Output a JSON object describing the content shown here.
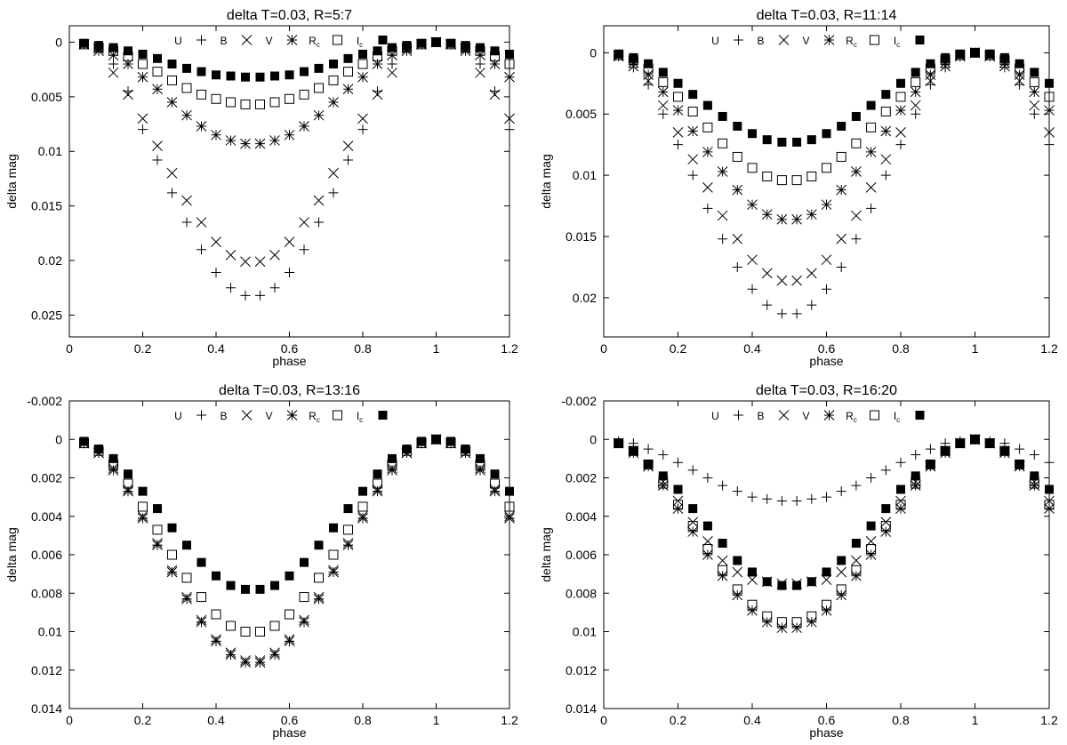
{
  "chart_data": [
    {
      "type": "scatter",
      "title": "delta T=0.03, R=5:7",
      "xlabel": "phase",
      "ylabel": "delta mag",
      "xlim": [
        0,
        1.2
      ],
      "ylim": [
        0.027,
        -0.0015
      ],
      "y_inverted": true,
      "xticks": [
        "0",
        "0.2",
        "0.4",
        "0.6",
        "0.8",
        "1",
        "1.2"
      ],
      "yticks": [
        "0",
        "0.005",
        "0.01",
        "0.015",
        "0.02",
        "0.025"
      ],
      "legend_position": "top-center",
      "x": [
        0.04,
        0.08,
        0.12,
        0.16,
        0.2,
        0.24,
        0.28,
        0.32,
        0.36,
        0.4,
        0.44,
        0.48,
        0.52,
        0.56,
        0.6,
        0.64,
        0.68,
        0.72,
        0.76,
        0.8,
        0.84,
        0.88,
        0.92,
        0.96,
        1.0,
        1.04,
        1.08,
        1.12,
        1.16,
        1.2
      ],
      "series": [
        {
          "name": "U",
          "marker": "plus",
          "values": [
            0.0002,
            0.0007,
            0.002,
            0.0045,
            0.008,
            0.0108,
            0.0138,
            0.0165,
            0.019,
            0.0211,
            0.0225,
            0.0232,
            0.0232,
            0.0225,
            0.0211,
            0.019,
            0.0165,
            0.0138,
            0.0108,
            0.008,
            0.0045,
            0.002,
            0.0007,
            0.0002,
            0.0,
            0.0002,
            0.0007,
            0.002,
            0.0045,
            0.008
          ]
        },
        {
          "name": "B",
          "marker": "cross",
          "values": [
            0.0002,
            0.0006,
            0.0028,
            0.0048,
            0.007,
            0.0095,
            0.012,
            0.0145,
            0.0165,
            0.0183,
            0.0195,
            0.0201,
            0.0201,
            0.0195,
            0.0183,
            0.0165,
            0.0145,
            0.012,
            0.0095,
            0.007,
            0.0048,
            0.0028,
            0.0006,
            0.0002,
            0.0,
            0.0002,
            0.0006,
            0.0028,
            0.0048,
            0.007
          ]
        },
        {
          "name": "V",
          "marker": "star",
          "values": [
            0.0002,
            0.0008,
            0.0012,
            0.002,
            0.0032,
            0.0043,
            0.0055,
            0.0067,
            0.0077,
            0.0085,
            0.009,
            0.0093,
            0.0093,
            0.009,
            0.0085,
            0.0077,
            0.0067,
            0.0055,
            0.0043,
            0.0032,
            0.002,
            0.0012,
            0.0008,
            0.0002,
            0.0,
            0.0002,
            0.0008,
            0.0012,
            0.002,
            0.0032
          ]
        },
        {
          "name": "R_c",
          "marker": "square-open",
          "values": [
            0.0002,
            0.0005,
            0.0008,
            0.0013,
            0.002,
            0.0027,
            0.0035,
            0.0042,
            0.0048,
            0.0052,
            0.0055,
            0.0057,
            0.0057,
            0.0055,
            0.0052,
            0.0048,
            0.0042,
            0.0035,
            0.0027,
            0.002,
            0.0013,
            0.0008,
            0.0005,
            0.0002,
            0.0,
            0.0002,
            0.0005,
            0.0008,
            0.0013,
            0.002
          ]
        },
        {
          "name": "I_c",
          "marker": "square-filled",
          "values": [
            0.0001,
            0.0003,
            0.0005,
            0.0008,
            0.0011,
            0.0015,
            0.002,
            0.0024,
            0.0027,
            0.003,
            0.0031,
            0.0032,
            0.0032,
            0.0031,
            0.003,
            0.0027,
            0.0024,
            0.002,
            0.0015,
            0.0011,
            0.0008,
            0.0005,
            0.0003,
            0.0001,
            0.0,
            0.0001,
            0.0003,
            0.0005,
            0.0008,
            0.0011
          ]
        }
      ]
    },
    {
      "type": "scatter",
      "title": "delta T=0.03, R=11:14",
      "xlabel": "phase",
      "ylabel": "delta mag",
      "xlim": [
        0,
        1.2
      ],
      "ylim": [
        0.0232,
        -0.0022
      ],
      "y_inverted": true,
      "xticks": [
        "0",
        "0.2",
        "0.4",
        "0.6",
        "0.8",
        "1",
        "1.2"
      ],
      "yticks": [
        "0",
        "0.005",
        "0.01",
        "0.015",
        "0.02"
      ],
      "legend_position": "top-center",
      "x": [
        0.04,
        0.08,
        0.12,
        0.16,
        0.2,
        0.24,
        0.28,
        0.32,
        0.36,
        0.4,
        0.44,
        0.48,
        0.52,
        0.56,
        0.6,
        0.64,
        0.68,
        0.72,
        0.76,
        0.8,
        0.84,
        0.88,
        0.92,
        0.96,
        1.0,
        1.04,
        1.08,
        1.12,
        1.16,
        1.2
      ],
      "series": [
        {
          "name": "U",
          "marker": "plus",
          "values": [
            0.0003,
            0.0012,
            0.0026,
            0.005,
            0.0075,
            0.01,
            0.0127,
            0.0152,
            0.0175,
            0.0193,
            0.0206,
            0.0213,
            0.0213,
            0.0206,
            0.0193,
            0.0175,
            0.0152,
            0.0127,
            0.01,
            0.0075,
            0.005,
            0.0026,
            0.0012,
            0.0003,
            0.0,
            0.0003,
            0.0012,
            0.0026,
            0.005,
            0.0075
          ]
        },
        {
          "name": "B",
          "marker": "cross",
          "values": [
            0.0003,
            0.0011,
            0.0023,
            0.0043,
            0.0065,
            0.0087,
            0.011,
            0.0133,
            0.0152,
            0.0169,
            0.018,
            0.0186,
            0.0186,
            0.018,
            0.0169,
            0.0152,
            0.0133,
            0.011,
            0.0087,
            0.0065,
            0.0043,
            0.0023,
            0.0011,
            0.0003,
            0.0,
            0.0003,
            0.0011,
            0.0023,
            0.0043,
            0.0065
          ]
        },
        {
          "name": "V",
          "marker": "star",
          "values": [
            0.0002,
            0.0008,
            0.0018,
            0.0032,
            0.0047,
            0.0064,
            0.0081,
            0.0097,
            0.0112,
            0.0124,
            0.0132,
            0.0136,
            0.0136,
            0.0132,
            0.0124,
            0.0112,
            0.0097,
            0.0081,
            0.0064,
            0.0047,
            0.0032,
            0.0018,
            0.0008,
            0.0002,
            0.0,
            0.0002,
            0.0008,
            0.0018,
            0.0032,
            0.0047
          ]
        },
        {
          "name": "R_c",
          "marker": "square-open",
          "values": [
            0.0002,
            0.0006,
            0.0013,
            0.0024,
            0.0036,
            0.0048,
            0.0061,
            0.0074,
            0.0085,
            0.0094,
            0.0101,
            0.0104,
            0.0104,
            0.0101,
            0.0094,
            0.0085,
            0.0074,
            0.0061,
            0.0048,
            0.0036,
            0.0024,
            0.0013,
            0.0006,
            0.0002,
            0.0,
            0.0002,
            0.0006,
            0.0013,
            0.0024,
            0.0036
          ]
        },
        {
          "name": "I_c",
          "marker": "square-filled",
          "values": [
            0.0001,
            0.0004,
            0.0009,
            0.0016,
            0.0025,
            0.0034,
            0.0043,
            0.0052,
            0.006,
            0.0066,
            0.0071,
            0.0073,
            0.0073,
            0.0071,
            0.0066,
            0.006,
            0.0052,
            0.0043,
            0.0034,
            0.0025,
            0.0016,
            0.0009,
            0.0004,
            0.0001,
            0.0,
            0.0001,
            0.0004,
            0.0009,
            0.0016,
            0.0025
          ]
        }
      ]
    },
    {
      "type": "scatter",
      "title": "delta T=0.03, R=13:16",
      "xlabel": "phase",
      "ylabel": "delta mag",
      "xlim": [
        0,
        1.2
      ],
      "ylim": [
        0.014,
        -0.002
      ],
      "y_inverted": true,
      "xticks": [
        "0",
        "0.2",
        "0.4",
        "0.6",
        "0.8",
        "1",
        "1.2"
      ],
      "yticks": [
        "-0.002",
        "0",
        "0.002",
        "0.004",
        "0.006",
        "0.008",
        "0.01",
        "0.012",
        "0.014"
      ],
      "legend_position": "top-center",
      "x": [
        0.04,
        0.08,
        0.12,
        0.16,
        0.2,
        0.24,
        0.28,
        0.32,
        0.36,
        0.4,
        0.44,
        0.48,
        0.52,
        0.56,
        0.6,
        0.64,
        0.68,
        0.72,
        0.76,
        0.8,
        0.84,
        0.88,
        0.92,
        0.96,
        1.0,
        1.04,
        1.08,
        1.12,
        1.16,
        1.2
      ],
      "series": [
        {
          "name": "U",
          "marker": "plus",
          "values": [
            0.0002,
            0.0007,
            0.0016,
            0.0027,
            0.0041,
            0.0055,
            0.0069,
            0.0083,
            0.0095,
            0.0105,
            0.0112,
            0.0116,
            0.0116,
            0.0112,
            0.0105,
            0.0095,
            0.0083,
            0.0069,
            0.0055,
            0.0041,
            0.0027,
            0.0016,
            0.0007,
            0.0002,
            0.0,
            0.0002,
            0.0007,
            0.0016,
            0.0027,
            0.0041
          ]
        },
        {
          "name": "B",
          "marker": "cross",
          "values": [
            0.0002,
            0.0007,
            0.0015,
            0.0026,
            0.004,
            0.0054,
            0.0068,
            0.0082,
            0.0094,
            0.0104,
            0.0111,
            0.0115,
            0.0115,
            0.0111,
            0.0104,
            0.0094,
            0.0082,
            0.0068,
            0.0054,
            0.004,
            0.0026,
            0.0015,
            0.0007,
            0.0002,
            0.0,
            0.0002,
            0.0007,
            0.0015,
            0.0026,
            0.004
          ]
        },
        {
          "name": "V",
          "marker": "star",
          "values": [
            0.0002,
            0.0007,
            0.0016,
            0.0027,
            0.0041,
            0.0055,
            0.0069,
            0.0083,
            0.0095,
            0.0105,
            0.0112,
            0.0116,
            0.0116,
            0.0112,
            0.0105,
            0.0095,
            0.0083,
            0.0069,
            0.0055,
            0.0041,
            0.0027,
            0.0016,
            0.0007,
            0.0002,
            0.0,
            0.0002,
            0.0007,
            0.0016,
            0.0027,
            0.0041
          ]
        },
        {
          "name": "R_c",
          "marker": "square-open",
          "values": [
            0.0002,
            0.0006,
            0.0013,
            0.0023,
            0.0035,
            0.0047,
            0.006,
            0.0072,
            0.0082,
            0.0091,
            0.0097,
            0.01,
            0.01,
            0.0097,
            0.0091,
            0.0082,
            0.0072,
            0.006,
            0.0047,
            0.0035,
            0.0023,
            0.0013,
            0.0006,
            0.0002,
            0.0,
            0.0002,
            0.0006,
            0.0013,
            0.0023,
            0.0035
          ]
        },
        {
          "name": "I_c",
          "marker": "square-filled",
          "values": [
            0.0001,
            0.0005,
            0.001,
            0.0018,
            0.0027,
            0.0036,
            0.0046,
            0.0055,
            0.0064,
            0.0071,
            0.0076,
            0.0078,
            0.0078,
            0.0076,
            0.0071,
            0.0064,
            0.0055,
            0.0046,
            0.0036,
            0.0027,
            0.0018,
            0.001,
            0.0005,
            0.0001,
            0.0,
            0.0001,
            0.0005,
            0.001,
            0.0018,
            0.0027
          ]
        }
      ]
    },
    {
      "type": "scatter",
      "title": "delta T=0.03, R=16:20",
      "xlabel": "phase",
      "ylabel": "delta mag",
      "xlim": [
        0,
        1.2
      ],
      "ylim": [
        0.014,
        -0.002
      ],
      "y_inverted": true,
      "xticks": [
        "0",
        "0.2",
        "0.4",
        "0.6",
        "0.8",
        "1",
        "1.2"
      ],
      "yticks": [
        "-0.002",
        "0",
        "0.002",
        "0.004",
        "0.006",
        "0.008",
        "0.01",
        "0.012",
        "0.014"
      ],
      "legend_position": "top-center",
      "x": [
        0.04,
        0.08,
        0.12,
        0.16,
        0.2,
        0.24,
        0.28,
        0.32,
        0.36,
        0.4,
        0.44,
        0.48,
        0.52,
        0.56,
        0.6,
        0.64,
        0.68,
        0.72,
        0.76,
        0.8,
        0.84,
        0.88,
        0.92,
        0.96,
        1.0,
        1.04,
        1.08,
        1.12,
        1.16,
        1.2
      ],
      "series": [
        {
          "name": "U",
          "marker": "plus",
          "values": [
            0.0001,
            0.0002,
            0.0005,
            0.0008,
            0.0012,
            0.0016,
            0.002,
            0.0024,
            0.0027,
            0.003,
            0.0031,
            0.0032,
            0.0032,
            0.0031,
            0.003,
            0.0027,
            0.0024,
            0.002,
            0.0016,
            0.0012,
            0.0008,
            0.0005,
            0.0002,
            0.0001,
            0.0,
            0.0001,
            0.0002,
            0.0005,
            0.0008,
            0.0012
          ]
        },
        {
          "name": "B",
          "marker": "cross",
          "values": [
            0.0002,
            0.0006,
            0.0014,
            0.0022,
            0.0032,
            0.0043,
            0.0053,
            0.0063,
            0.0069,
            0.0073,
            0.0074,
            0.0075,
            0.0075,
            0.0074,
            0.0073,
            0.0069,
            0.0063,
            0.0053,
            0.0043,
            0.0032,
            0.0022,
            0.0014,
            0.0006,
            0.0002,
            0.0,
            0.0002,
            0.0006,
            0.0014,
            0.0022,
            0.0032
          ]
        },
        {
          "name": "V",
          "marker": "star",
          "values": [
            0.0002,
            0.0007,
            0.0014,
            0.0024,
            0.0036,
            0.0048,
            0.006,
            0.0071,
            0.0081,
            0.0089,
            0.0095,
            0.0098,
            0.0098,
            0.0095,
            0.0089,
            0.0081,
            0.0071,
            0.006,
            0.0048,
            0.0036,
            0.0024,
            0.0014,
            0.0007,
            0.0002,
            0.0,
            0.0002,
            0.0007,
            0.0014,
            0.0024,
            0.0036
          ]
        },
        {
          "name": "R_c",
          "marker": "square-open",
          "values": [
            0.0002,
            0.0006,
            0.0013,
            0.0023,
            0.0034,
            0.0045,
            0.0057,
            0.0068,
            0.0078,
            0.0086,
            0.0092,
            0.0095,
            0.0095,
            0.0092,
            0.0086,
            0.0078,
            0.0068,
            0.0057,
            0.0045,
            0.0034,
            0.0023,
            0.0013,
            0.0006,
            0.0002,
            0.0,
            0.0002,
            0.0006,
            0.0013,
            0.0023,
            0.0034
          ]
        },
        {
          "name": "I_c",
          "marker": "square-filled",
          "values": [
            0.0002,
            0.0006,
            0.0013,
            0.0019,
            0.0026,
            0.0036,
            0.0045,
            0.0054,
            0.0063,
            0.0069,
            0.0074,
            0.0076,
            0.0076,
            0.0074,
            0.0069,
            0.0063,
            0.0054,
            0.0045,
            0.0036,
            0.0026,
            0.0019,
            0.0013,
            0.0006,
            0.0002,
            0.0,
            0.0002,
            0.0006,
            0.0013,
            0.0019,
            0.0026
          ]
        }
      ]
    }
  ]
}
